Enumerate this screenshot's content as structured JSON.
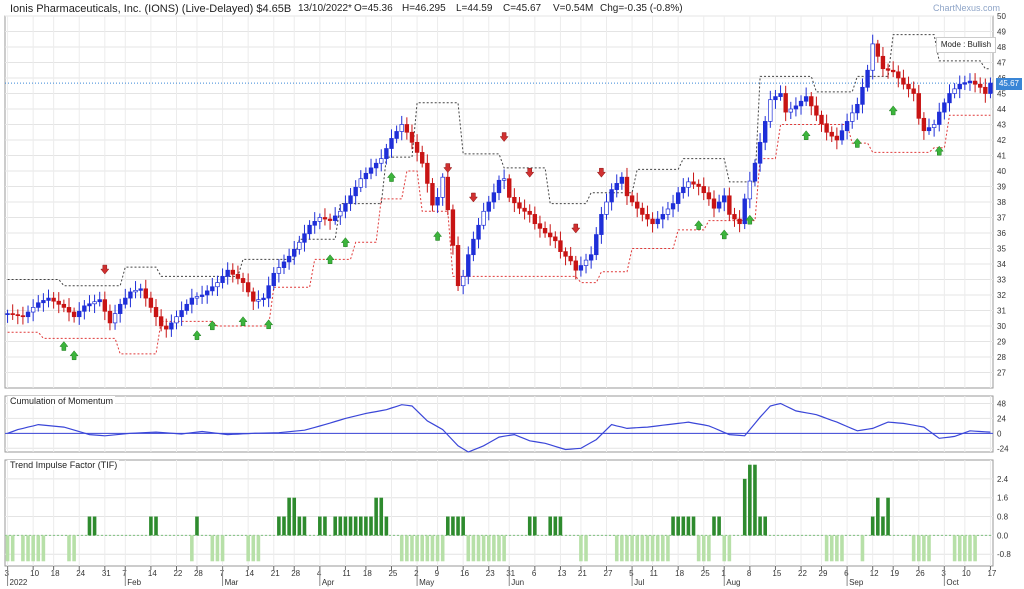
{
  "header": {
    "title": "Ionis Pharmaceuticals, Inc. (IONS) (Live-Delayed) $4.65B",
    "date": "13/10/2022*",
    "open": "O=45.36",
    "high": "H=46.295",
    "low": "L=44.59",
    "close": "C=45.67",
    "volume": "V=0.54M",
    "change": "Chg=-0.35 (-0.8%)",
    "brand": "ChartNexus.com"
  },
  "mode_label": "Mode : Bullish",
  "last_price_tag": "45.67",
  "colors": {
    "up": "#1f2fd8",
    "down": "#c81414",
    "tif": "#2e8b2e",
    "tif_light": "#b7e0a8",
    "arrow_up": "#3cb43c",
    "arrow_down": "#d03030",
    "momentum": "#3a46d8",
    "last_price": "#3a86d6"
  },
  "chart_data": [
    {
      "type": "candlestick",
      "title": "",
      "y_ticks": [
        27,
        28,
        29,
        30,
        31,
        32,
        33,
        34,
        35,
        36,
        37,
        38,
        39,
        40,
        41,
        42,
        43,
        44,
        45,
        46,
        47,
        48,
        49,
        50
      ],
      "ylim": [
        26,
        50
      ],
      "x_axis": {
        "tick_labels": [
          "3",
          "10",
          "18",
          "24",
          "31",
          "7",
          "14",
          "22",
          "28",
          "7",
          "14",
          "21",
          "28",
          "4",
          "11",
          "18",
          "25",
          "2",
          "9",
          "16",
          "23",
          "31",
          "6",
          "13",
          "21",
          "27",
          "5",
          "11",
          "18",
          "25",
          "1",
          "8",
          "15",
          "22",
          "29",
          "6",
          "12",
          "19",
          "26",
          "3",
          "10",
          "17"
        ],
        "month_labels": [
          [
            "2022",
            0
          ],
          [
            "Feb",
            5
          ],
          [
            "Mar",
            9
          ],
          [
            "Apr",
            13
          ],
          [
            "May",
            17
          ],
          [
            "Jun",
            21
          ],
          [
            "Jul",
            26
          ],
          [
            "Aug",
            30
          ],
          [
            "Sep",
            35
          ],
          [
            "Oct",
            39
          ]
        ]
      },
      "price_path": [
        [
          0,
          30.8
        ],
        [
          3,
          30.6
        ],
        [
          6,
          31.5
        ],
        [
          8,
          31.8
        ],
        [
          11,
          31.2
        ],
        [
          13,
          30.6
        ],
        [
          15,
          31.3
        ],
        [
          18,
          31.7
        ],
        [
          20,
          30.2
        ],
        [
          22,
          31.4
        ],
        [
          24,
          32.2
        ],
        [
          26,
          32.4
        ],
        [
          28,
          31.2
        ],
        [
          30,
          30.0
        ],
        [
          31,
          29.8
        ],
        [
          33,
          30.6
        ],
        [
          36,
          31.8
        ],
        [
          38,
          32.0
        ],
        [
          41,
          32.8
        ],
        [
          43,
          33.6
        ],
        [
          46,
          32.8
        ],
        [
          48,
          31.6
        ],
        [
          50,
          31.8
        ],
        [
          52,
          33.4
        ],
        [
          55,
          34.5
        ],
        [
          57,
          35.4
        ],
        [
          59,
          36.5
        ],
        [
          61,
          37.0
        ],
        [
          63,
          36.8
        ],
        [
          65,
          37.4
        ],
        [
          67,
          38.4
        ],
        [
          69,
          39.5
        ],
        [
          71,
          40.2
        ],
        [
          73,
          40.8
        ],
        [
          75,
          42.1
        ],
        [
          77,
          43.0
        ],
        [
          78,
          42.5
        ],
        [
          80,
          41.2
        ],
        [
          81,
          40.5
        ],
        [
          82,
          39.2
        ],
        [
          83,
          37.8
        ],
        [
          84,
          38.3
        ],
        [
          85,
          39.6
        ],
        [
          86,
          37.5
        ],
        [
          87,
          35.2
        ],
        [
          88,
          32.6
        ],
        [
          89,
          33.2
        ],
        [
          90,
          34.6
        ],
        [
          91,
          35.6
        ],
        [
          93,
          37.4
        ],
        [
          95,
          38.6
        ],
        [
          96,
          39.4
        ],
        [
          97,
          39.5
        ],
        [
          98,
          38.3
        ],
        [
          100,
          37.6
        ],
        [
          102,
          37.2
        ],
        [
          103,
          36.6
        ],
        [
          105,
          36.0
        ],
        [
          107,
          35.5
        ],
        [
          108,
          34.8
        ],
        [
          110,
          34.2
        ],
        [
          111,
          33.6
        ],
        [
          112,
          33.9
        ],
        [
          114,
          34.6
        ],
        [
          116,
          37.2
        ],
        [
          118,
          38.8
        ],
        [
          120,
          39.6
        ],
        [
          121,
          38.4
        ],
        [
          122,
          38.0
        ],
        [
          124,
          37.2
        ],
        [
          126,
          36.6
        ],
        [
          128,
          37.2
        ],
        [
          130,
          37.9
        ],
        [
          131,
          38.6
        ],
        [
          133,
          39.3
        ],
        [
          135,
          39.0
        ],
        [
          137,
          38.2
        ],
        [
          138,
          37.6
        ],
        [
          140,
          38.4
        ],
        [
          141,
          37.2
        ],
        [
          143,
          36.6
        ],
        [
          144,
          38.2
        ],
        [
          146,
          40.5
        ],
        [
          148,
          43.2
        ],
        [
          149,
          44.6
        ],
        [
          151,
          45.0
        ],
        [
          152,
          43.8
        ],
        [
          154,
          44.2
        ],
        [
          156,
          44.8
        ],
        [
          158,
          43.6
        ],
        [
          160,
          42.5
        ],
        [
          162,
          42.0
        ],
        [
          164,
          43.2
        ],
        [
          166,
          44.3
        ],
        [
          168,
          46.5
        ],
        [
          169,
          48.2
        ],
        [
          170,
          47.4
        ],
        [
          171,
          46.6
        ],
        [
          173,
          46.4
        ],
        [
          175,
          45.6
        ],
        [
          177,
          45.0
        ],
        [
          178,
          43.4
        ],
        [
          179,
          42.6
        ],
        [
          181,
          43.0
        ],
        [
          182,
          43.8
        ],
        [
          183,
          44.4
        ],
        [
          184,
          45.0
        ],
        [
          186,
          45.6
        ],
        [
          188,
          45.8
        ],
        [
          190,
          45.4
        ],
        [
          191,
          45.0
        ],
        [
          192,
          45.67
        ]
      ],
      "stop_upper_path": [
        [
          0,
          33.0
        ],
        [
          10,
          33.0
        ],
        [
          11,
          32.6
        ],
        [
          22,
          32.6
        ],
        [
          23,
          33.8
        ],
        [
          29,
          33.8
        ],
        [
          30,
          33.2
        ],
        [
          45,
          33.2
        ],
        [
          46,
          34.3
        ],
        [
          56,
          34.3
        ],
        [
          57,
          35.6
        ],
        [
          64,
          35.6
        ],
        [
          65,
          37.9
        ],
        [
          73,
          37.9
        ],
        [
          74,
          40.9
        ],
        [
          79,
          40.9
        ],
        [
          80,
          44.4
        ],
        [
          88,
          44.4
        ],
        [
          89,
          41.1
        ],
        [
          96,
          41.1
        ],
        [
          97,
          40.2
        ],
        [
          105,
          40.2
        ],
        [
          106,
          37.9
        ],
        [
          113,
          37.9
        ],
        [
          114,
          38.6
        ],
        [
          122,
          38.6
        ],
        [
          123,
          40.1
        ],
        [
          131,
          40.1
        ],
        [
          132,
          40.8
        ],
        [
          140,
          40.8
        ],
        [
          141,
          39.3
        ],
        [
          146,
          39.3
        ],
        [
          147,
          46.1
        ],
        [
          157,
          46.1
        ],
        [
          158,
          45.1
        ],
        [
          165,
          45.1
        ],
        [
          166,
          46.1
        ],
        [
          172,
          46.1
        ],
        [
          173,
          48.8
        ],
        [
          181,
          48.8
        ],
        [
          182,
          47.1
        ],
        [
          190,
          47.1
        ],
        [
          191,
          46.6
        ],
        [
          192,
          46.6
        ]
      ],
      "stop_lower_path": [
        [
          0,
          29.6
        ],
        [
          6,
          29.6
        ],
        [
          7,
          29.2
        ],
        [
          21,
          29.2
        ],
        [
          22,
          28.2
        ],
        [
          29,
          28.2
        ],
        [
          30,
          30.3
        ],
        [
          40,
          30.3
        ],
        [
          41,
          30.0
        ],
        [
          51,
          30.0
        ],
        [
          52,
          32.5
        ],
        [
          59,
          32.5
        ],
        [
          60,
          34.3
        ],
        [
          67,
          34.3
        ],
        [
          68,
          35.4
        ],
        [
          72,
          35.4
        ],
        [
          73,
          38.2
        ],
        [
          77,
          38.2
        ],
        [
          78,
          40.0
        ],
        [
          80,
          40.0
        ],
        [
          81,
          37.4
        ],
        [
          86,
          37.4
        ],
        [
          87,
          33.2
        ],
        [
          111,
          33.2
        ],
        [
          112,
          32.8
        ],
        [
          115,
          32.8
        ],
        [
          116,
          33.5
        ],
        [
          121,
          33.5
        ],
        [
          122,
          35.0
        ],
        [
          130,
          35.0
        ],
        [
          131,
          36.2
        ],
        [
          136,
          36.2
        ],
        [
          137,
          36.8
        ],
        [
          146,
          36.8
        ],
        [
          147,
          40.8
        ],
        [
          150,
          40.8
        ],
        [
          151,
          43.0
        ],
        [
          164,
          43.0
        ],
        [
          165,
          41.8
        ],
        [
          168,
          41.8
        ],
        [
          169,
          41.2
        ],
        [
          180,
          41.2
        ],
        [
          181,
          41.5
        ],
        [
          183,
          41.5
        ],
        [
          184,
          43.6
        ],
        [
          192,
          43.6
        ]
      ],
      "buy_arrow_index": [
        11,
        13,
        37,
        40,
        46,
        51,
        63,
        66,
        75,
        84,
        135,
        140,
        145,
        156,
        166,
        173,
        182
      ],
      "sell_arrow_index": [
        19,
        86,
        91,
        97,
        102,
        111,
        116
      ]
    },
    {
      "type": "line",
      "title": "Cumulation of Momentum",
      "y_ticks": [
        -24,
        0,
        24,
        48
      ],
      "ylim": [
        -30,
        60
      ],
      "path": [
        [
          0,
          0
        ],
        [
          2,
          6
        ],
        [
          6,
          14
        ],
        [
          11,
          10
        ],
        [
          16,
          -2
        ],
        [
          19,
          -4
        ],
        [
          24,
          0
        ],
        [
          29,
          2
        ],
        [
          34,
          -1
        ],
        [
          38,
          3
        ],
        [
          43,
          -2
        ],
        [
          48,
          0
        ],
        [
          53,
          1
        ],
        [
          58,
          5
        ],
        [
          62,
          14
        ],
        [
          66,
          24
        ],
        [
          70,
          32
        ],
        [
          74,
          38
        ],
        [
          77,
          46
        ],
        [
          79,
          44
        ],
        [
          82,
          20
        ],
        [
          85,
          6
        ],
        [
          88,
          -20
        ],
        [
          90,
          -30
        ],
        [
          93,
          -20
        ],
        [
          96,
          -6
        ],
        [
          99,
          -2
        ],
        [
          102,
          -12
        ],
        [
          105,
          -16
        ],
        [
          109,
          -26
        ],
        [
          112,
          -24
        ],
        [
          115,
          -10
        ],
        [
          118,
          14
        ],
        [
          121,
          8
        ],
        [
          125,
          10
        ],
        [
          129,
          14
        ],
        [
          133,
          18
        ],
        [
          137,
          12
        ],
        [
          141,
          -2
        ],
        [
          144,
          -4
        ],
        [
          147,
          26
        ],
        [
          149,
          44
        ],
        [
          151,
          48
        ],
        [
          154,
          36
        ],
        [
          158,
          30
        ],
        [
          162,
          18
        ],
        [
          166,
          4
        ],
        [
          169,
          8
        ],
        [
          172,
          18
        ],
        [
          175,
          16
        ],
        [
          179,
          10
        ],
        [
          182,
          -8
        ],
        [
          185,
          -5
        ],
        [
          188,
          4
        ],
        [
          192,
          2
        ]
      ]
    },
    {
      "type": "bar",
      "title": "Trend Impulse Factor (TIF)",
      "y_ticks": [
        -0.8,
        0.0,
        0.8,
        1.6,
        2.4
      ],
      "ylim": [
        -1.3,
        3.2
      ],
      "values": [
        -1.1,
        -1.1,
        0,
        -1.1,
        -1.1,
        -1.1,
        -1.1,
        -1.1,
        0,
        0,
        0,
        0,
        -1.1,
        -1.1,
        0,
        0,
        0.8,
        0.8,
        0,
        0,
        0,
        0,
        0,
        0,
        0,
        0,
        0,
        0,
        0.8,
        0.8,
        0,
        0,
        0,
        0,
        0,
        0,
        -1.1,
        0.8,
        0,
        0,
        -1.1,
        -1.1,
        -1.1,
        0,
        0,
        0,
        0,
        -1.1,
        -1.1,
        -1.1,
        0,
        0,
        0,
        0.8,
        0.8,
        1.6,
        1.6,
        0.8,
        0.8,
        0,
        0,
        0.8,
        0.8,
        0,
        0.8,
        0.8,
        0.8,
        0.8,
        0.8,
        0.8,
        0.8,
        0.8,
        1.6,
        1.6,
        0.8,
        0,
        0,
        -1.1,
        -1.1,
        -1.1,
        -1.1,
        -1.1,
        -1.1,
        -1.1,
        -1.1,
        -1.1,
        0.8,
        0.8,
        0.8,
        0.8,
        -1.1,
        -1.1,
        -1.1,
        -1.1,
        -1.1,
        -1.1,
        -1.1,
        -1.1,
        0,
        0,
        0,
        0,
        0.8,
        0.8,
        0,
        0,
        0.8,
        0.8,
        0.8,
        0,
        0,
        0,
        -1.1,
        -1.1,
        0,
        0,
        0,
        0,
        0,
        -1.1,
        -1.1,
        -1.1,
        -1.1,
        -1.1,
        -1.1,
        -1.1,
        -1.1,
        -1.1,
        -1.1,
        -1.1,
        0.8,
        0.8,
        0.8,
        0.8,
        0.8,
        -1.1,
        -1.1,
        -1.1,
        0.8,
        0.8,
        -1.1,
        -1.1,
        0,
        0,
        2.4,
        3.0,
        3.0,
        0.8,
        0.8,
        0,
        0,
        0,
        0,
        0,
        0,
        0,
        0,
        0,
        0,
        0,
        -1.1,
        -1.1,
        -1.1,
        -1.1,
        0,
        0,
        0,
        -1.1,
        0,
        0.8,
        1.6,
        0.8,
        1.6,
        0,
        0,
        0,
        0,
        -1.1,
        -1.1,
        -1.1,
        -1.1,
        0,
        0,
        0,
        0,
        -1.1,
        -1.1,
        -1.1,
        -1.1,
        -1.1,
        0,
        0,
        0,
        0
      ]
    }
  ]
}
